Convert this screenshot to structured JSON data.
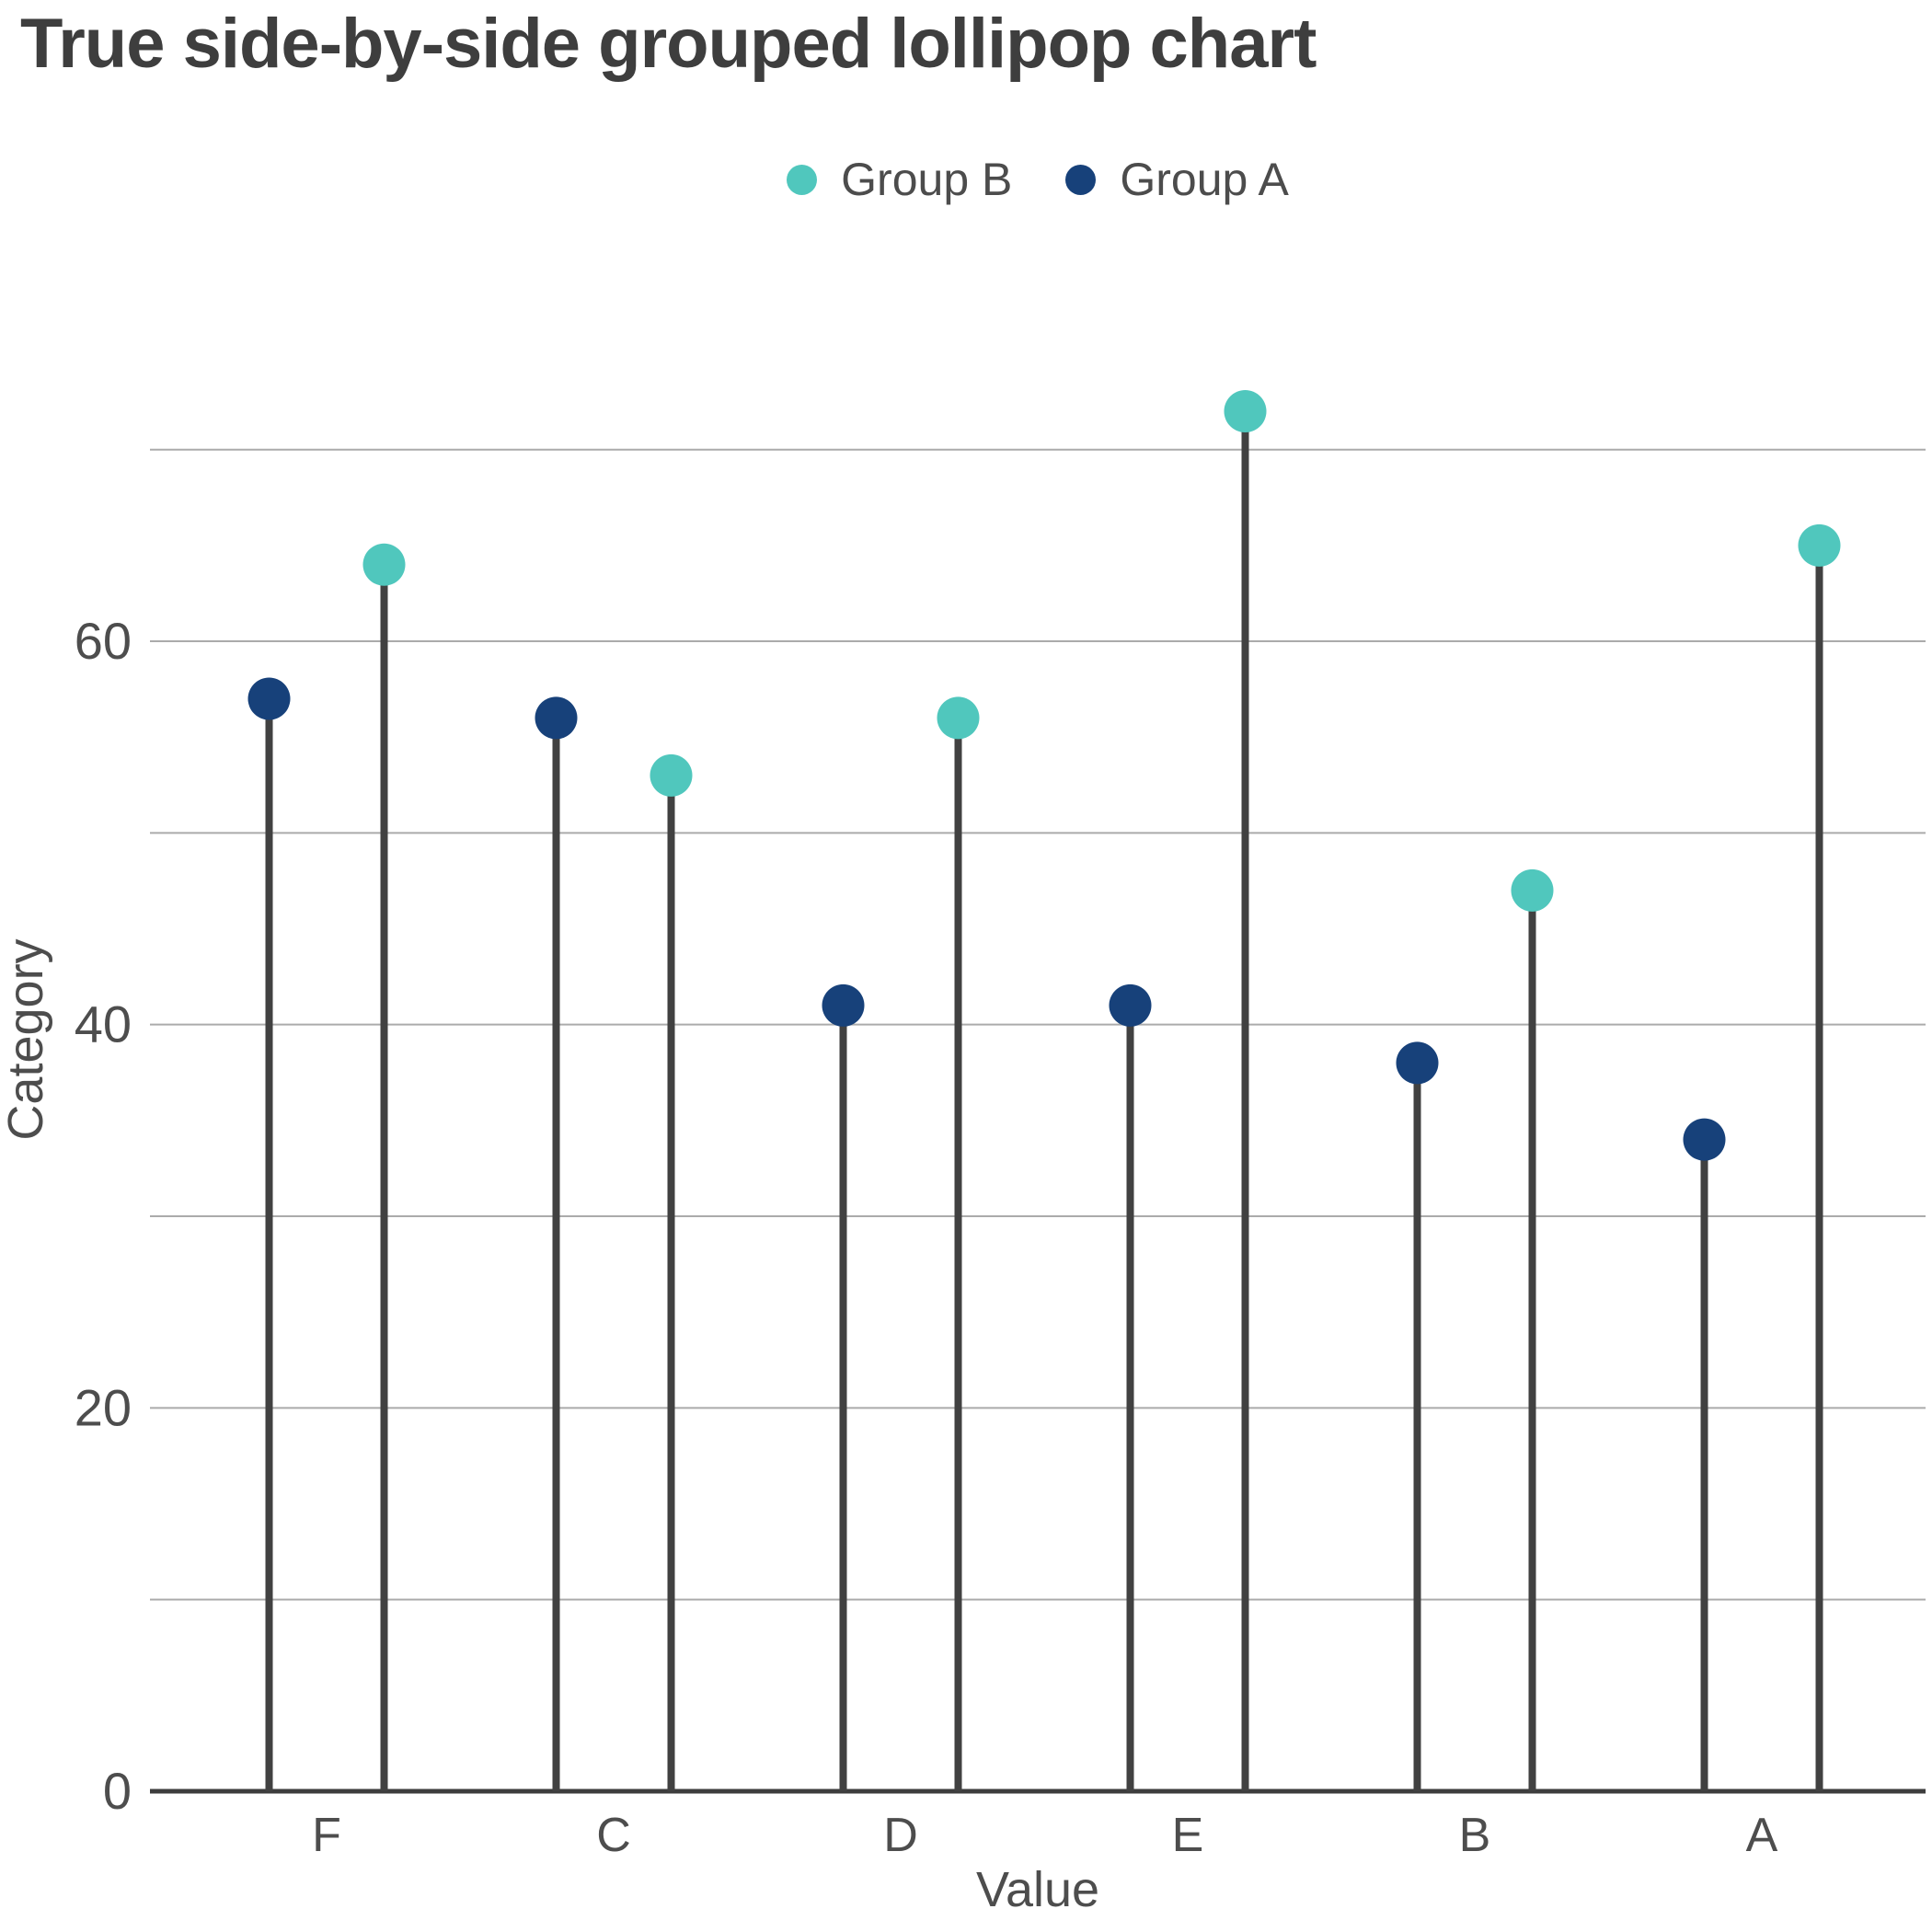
{
  "title": "True side-by-side grouped lollipop chart",
  "legend": {
    "items": [
      {
        "label": "Group B",
        "color": "#50C7BD"
      },
      {
        "label": "Group A",
        "color": "#17417A"
      }
    ]
  },
  "chart_data": {
    "type": "lollipop",
    "subtype": "grouped-vertical-side-by-side",
    "title": "True side-by-side grouped lollipop chart",
    "categories": [
      "F",
      "C",
      "D",
      "E",
      "B",
      "A"
    ],
    "series": [
      {
        "name": "Group A",
        "position": "left",
        "color": "#17417A",
        "values": [
          57,
          56,
          41,
          41,
          38,
          34
        ]
      },
      {
        "name": "Group B",
        "position": "right",
        "color": "#50C7BD",
        "values": [
          64,
          53,
          56,
          72,
          47,
          65
        ]
      }
    ],
    "xlabel": "Value",
    "ylabel": "Category",
    "ylim": [
      0,
      77
    ],
    "y_ticks_labeled": [
      0,
      20,
      40,
      60
    ],
    "grid": true,
    "grid_step": 10,
    "grid_max": 70,
    "legend_position": "top-center",
    "stem_color": "#414141",
    "axis_color": "#3D3D3D",
    "grid_color": "#ABABAB",
    "label_color": "#4D4D4D"
  }
}
